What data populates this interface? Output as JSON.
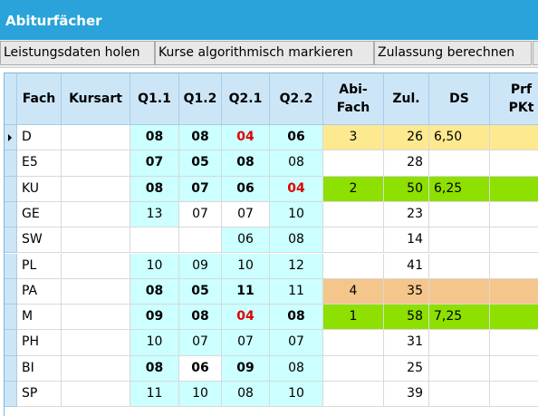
{
  "window": {
    "title": "Abiturfächer"
  },
  "toolbar": {
    "buttons": [
      "Leistungsdaten holen",
      "Kurse algorithmisch markieren",
      "Zulassung berechnen"
    ]
  },
  "table": {
    "columns": [
      [
        "Fach"
      ],
      [
        "Kursart"
      ],
      [
        "Q1.1"
      ],
      [
        "Q1.2"
      ],
      [
        "Q2.1"
      ],
      [
        "Q2.2"
      ],
      [
        "Abi-",
        "Fach"
      ],
      [
        "Zul."
      ],
      [
        "DS"
      ],
      [
        "Prf",
        "PKt"
      ]
    ],
    "selected_row": 0,
    "rows": [
      {
        "fach": "D",
        "grades": [
          "08",
          "08",
          "04",
          "06"
        ],
        "styles": [
          "strong",
          "strong",
          "warn",
          "strong"
        ],
        "bg": [
          "#ccffff",
          "#ccffff",
          "#ccffff",
          "#ccffff"
        ],
        "abi": 3,
        "zul": 26,
        "ds": "6,50",
        "highlight": "#fde98f"
      },
      {
        "fach": "E5",
        "grades": [
          "07",
          "05",
          "08",
          "08"
        ],
        "styles": [
          "strong",
          "strong",
          "strong",
          "normal"
        ],
        "bg": [
          "#ccffff",
          "#ccffff",
          "#ccffff",
          "#ccffff"
        ],
        "abi": null,
        "zul": 28,
        "ds": null,
        "highlight": null
      },
      {
        "fach": "KU",
        "grades": [
          "08",
          "07",
          "06",
          "04"
        ],
        "styles": [
          "strong",
          "strong",
          "strong",
          "warn"
        ],
        "bg": [
          "#ccffff",
          "#ccffff",
          "#ccffff",
          "#ccffff"
        ],
        "abi": 2,
        "zul": 50,
        "ds": "6,25",
        "highlight": "#8ee000"
      },
      {
        "fach": "GE",
        "grades": [
          "13",
          "07",
          "07",
          "10"
        ],
        "styles": [
          "normal",
          "normal",
          "normal",
          "normal"
        ],
        "bg": [
          "#ccffff",
          "#ffffff",
          "#ffffff",
          "#ccffff"
        ],
        "abi": null,
        "zul": 23,
        "ds": null,
        "highlight": null
      },
      {
        "fach": "SW",
        "grades": [
          null,
          null,
          "06",
          "08"
        ],
        "styles": [
          "normal",
          "normal",
          "normal",
          "normal"
        ],
        "bg": [
          "#ffffff",
          "#ffffff",
          "#ccffff",
          "#ccffff"
        ],
        "abi": null,
        "zul": 14,
        "ds": null,
        "highlight": null
      },
      {
        "fach": "PL",
        "grades": [
          "10",
          "09",
          "10",
          "12"
        ],
        "styles": [
          "normal",
          "normal",
          "normal",
          "normal"
        ],
        "bg": [
          "#ccffff",
          "#ccffff",
          "#ccffff",
          "#ccffff"
        ],
        "abi": null,
        "zul": 41,
        "ds": null,
        "highlight": null
      },
      {
        "fach": "PA",
        "grades": [
          "08",
          "05",
          "11",
          "11"
        ],
        "styles": [
          "strong",
          "strong",
          "strong",
          "normal"
        ],
        "bg": [
          "#ccffff",
          "#ccffff",
          "#ccffff",
          "#ccffff"
        ],
        "abi": 4,
        "zul": 35,
        "ds": null,
        "highlight": "#f5c68b"
      },
      {
        "fach": "M",
        "grades": [
          "09",
          "08",
          "04",
          "08"
        ],
        "styles": [
          "strong",
          "strong",
          "warn",
          "strong"
        ],
        "bg": [
          "#ccffff",
          "#ccffff",
          "#ccffff",
          "#ccffff"
        ],
        "abi": 1,
        "zul": 58,
        "ds": "7,25",
        "highlight": "#8ee000"
      },
      {
        "fach": "PH",
        "grades": [
          "10",
          "07",
          "07",
          "07"
        ],
        "styles": [
          "normal",
          "normal",
          "normal",
          "normal"
        ],
        "bg": [
          "#ccffff",
          "#ccffff",
          "#ccffff",
          "#ccffff"
        ],
        "abi": null,
        "zul": 31,
        "ds": null,
        "highlight": null
      },
      {
        "fach": "BI",
        "grades": [
          "08",
          "06",
          "09",
          "08"
        ],
        "styles": [
          "strong",
          "strong",
          "strong",
          "normal"
        ],
        "bg": [
          "#ccffff",
          "#ffffff",
          "#ccffff",
          "#ccffff"
        ],
        "abi": null,
        "zul": 25,
        "ds": null,
        "highlight": null
      },
      {
        "fach": "SP",
        "grades": [
          "11",
          "10",
          "08",
          "10"
        ],
        "styles": [
          "normal",
          "normal",
          "normal",
          "normal"
        ],
        "bg": [
          "#ccffff",
          "#ccffff",
          "#ccffff",
          "#ccffff"
        ],
        "abi": null,
        "zul": 39,
        "ds": null,
        "highlight": null
      }
    ]
  }
}
